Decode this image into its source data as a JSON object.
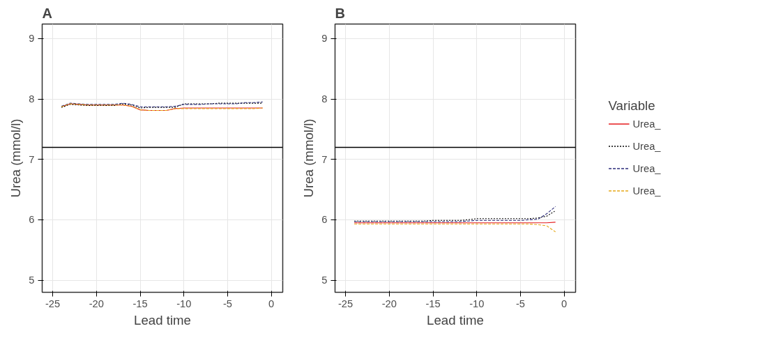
{
  "chart_data": [
    {
      "type": "line",
      "title": "A",
      "xlabel": "Lead time",
      "ylabel": "Urea (mmol/l)",
      "xlim": [
        -26.2,
        1.3
      ],
      "ylim": [
        4.8,
        9.24
      ],
      "xticks": [
        -25,
        -20,
        -15,
        -10,
        -5,
        0
      ],
      "yticks": [
        5,
        6,
        7,
        8,
        9
      ],
      "grid": true,
      "x": [
        -24,
        -23,
        -22,
        -21,
        -20,
        -19,
        -18,
        -17,
        -16,
        -15,
        -14,
        -13,
        -12,
        -11,
        -10,
        -9,
        -8,
        -7,
        -6,
        -5,
        -4,
        -3,
        -2,
        -1
      ],
      "ref_lines": [
        {
          "axis": "y",
          "value": 7.2,
          "color": "#000000"
        }
      ],
      "series": [
        {
          "color": "#e41a1c",
          "line_style": "solid",
          "values": [
            7.87,
            7.92,
            7.91,
            7.9,
            7.9,
            7.9,
            7.9,
            7.9,
            7.88,
            7.82,
            7.81,
            7.81,
            7.81,
            7.84,
            7.85,
            7.85,
            7.85,
            7.85,
            7.85,
            7.85,
            7.85,
            7.85,
            7.85,
            7.85
          ]
        },
        {
          "color": "#000000",
          "line_style": "dotted",
          "values": [
            7.86,
            7.91,
            7.9,
            7.89,
            7.89,
            7.89,
            7.89,
            7.92,
            7.9,
            7.85,
            7.86,
            7.86,
            7.86,
            7.86,
            7.92,
            7.92,
            7.92,
            7.92,
            7.93,
            7.93,
            7.93,
            7.93,
            7.93,
            7.93
          ]
        },
        {
          "color": "#2b2b7a",
          "line_style": "dashed",
          "values": [
            7.88,
            7.93,
            7.92,
            7.91,
            7.91,
            7.91,
            7.91,
            7.93,
            7.91,
            7.87,
            7.87,
            7.87,
            7.87,
            7.88,
            7.91,
            7.91,
            7.91,
            7.92,
            7.92,
            7.92,
            7.92,
            7.94,
            7.94,
            7.95
          ]
        },
        {
          "color": "#e6a817",
          "line_style": "dashed",
          "values": [
            7.87,
            7.92,
            7.91,
            7.9,
            7.9,
            7.9,
            7.9,
            7.9,
            7.88,
            7.82,
            7.81,
            7.81,
            7.81,
            7.84,
            7.84,
            7.84,
            7.84,
            7.84,
            7.84,
            7.84,
            7.84,
            7.84,
            7.84,
            7.85
          ]
        }
      ]
    },
    {
      "type": "line",
      "title": "B",
      "xlabel": "Lead time",
      "ylabel": "Urea (mmol/l)",
      "xlim": [
        -26.2,
        1.3
      ],
      "ylim": [
        4.8,
        9.24
      ],
      "xticks": [
        -25,
        -20,
        -15,
        -10,
        -5,
        0
      ],
      "yticks": [
        5,
        6,
        7,
        8,
        9
      ],
      "grid": true,
      "legend": "right",
      "legend_title": "Variable",
      "x": [
        -24,
        -23,
        -22,
        -21,
        -20,
        -19,
        -18,
        -17,
        -16,
        -15,
        -14,
        -13,
        -12,
        -11,
        -10,
        -9,
        -8,
        -7,
        -6,
        -5,
        -4,
        -3,
        -2,
        -1
      ],
      "ref_lines": [
        {
          "axis": "y",
          "value": 7.2,
          "color": "#000000"
        }
      ],
      "series": [
        {
          "name": "Urea_",
          "color": "#e41a1c",
          "line_style": "solid",
          "values": [
            5.95,
            5.95,
            5.95,
            5.95,
            5.95,
            5.95,
            5.95,
            5.95,
            5.95,
            5.95,
            5.95,
            5.95,
            5.95,
            5.95,
            5.95,
            5.95,
            5.95,
            5.95,
            5.95,
            5.95,
            5.95,
            5.95,
            5.95,
            5.96
          ]
        },
        {
          "name": "Urea_",
          "color": "#000000",
          "line_style": "dotted",
          "values": [
            5.98,
            5.98,
            5.98,
            5.98,
            5.98,
            5.98,
            5.98,
            5.98,
            5.98,
            5.99,
            5.99,
            5.99,
            5.99,
            6.0,
            6.02,
            6.02,
            6.02,
            6.02,
            6.02,
            6.02,
            6.02,
            6.03,
            6.06,
            6.15
          ]
        },
        {
          "name": "Urea_",
          "color": "#2b2b7a",
          "line_style": "dashed",
          "values": [
            5.97,
            5.97,
            5.97,
            5.97,
            5.97,
            5.97,
            5.97,
            5.97,
            5.97,
            5.97,
            5.97,
            5.97,
            5.97,
            5.98,
            5.99,
            5.99,
            5.99,
            5.99,
            5.99,
            5.99,
            6.0,
            6.01,
            6.1,
            6.22
          ]
        },
        {
          "name": "Urea_",
          "color": "#e6a817",
          "line_style": "dashed",
          "values": [
            5.93,
            5.93,
            5.93,
            5.93,
            5.93,
            5.93,
            5.93,
            5.93,
            5.93,
            5.93,
            5.93,
            5.93,
            5.93,
            5.93,
            5.93,
            5.93,
            5.93,
            5.93,
            5.93,
            5.93,
            5.93,
            5.92,
            5.9,
            5.8
          ]
        }
      ]
    }
  ]
}
